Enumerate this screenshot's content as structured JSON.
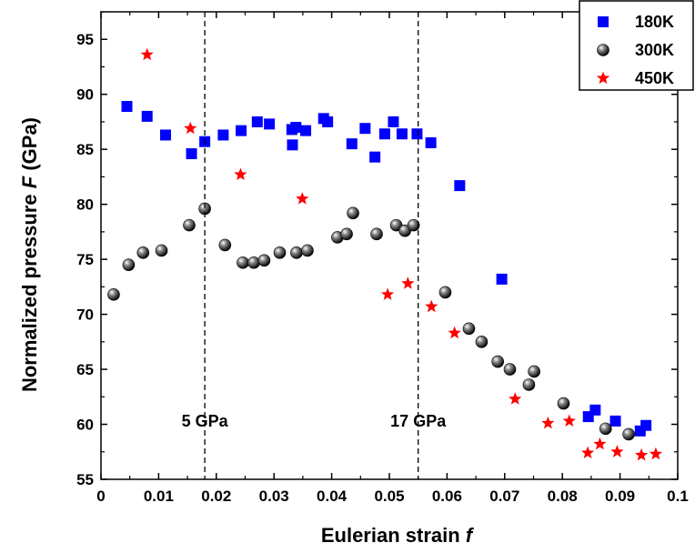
{
  "chart_data": {
    "type": "scatter",
    "xlabel": "Eulerian strain",
    "xlabel_symbol": "f",
    "ylabel": "Normalized pressure",
    "ylabel_symbol": "F",
    "ylabel_unit": "(GPa)",
    "xlim": [
      0,
      0.1
    ],
    "ylim": [
      55,
      97.5
    ],
    "x_ticks": [
      0,
      0.01,
      0.02,
      0.03,
      0.04,
      0.05,
      0.06,
      0.07,
      0.08,
      0.09,
      0.1
    ],
    "x_tick_labels": [
      "0",
      "0.01",
      "0.02",
      "0.03",
      "0.04",
      "0.05",
      "0.06",
      "0.07",
      "0.08",
      "0.09",
      "0.1"
    ],
    "y_ticks": [
      55,
      60,
      65,
      70,
      75,
      80,
      85,
      90,
      95
    ],
    "y_tick_labels": [
      "55",
      "60",
      "65",
      "70",
      "75",
      "80",
      "85",
      "90",
      "95"
    ],
    "grid": false,
    "legend_position": "top-right",
    "vlines": [
      {
        "x": 0.018,
        "label": "5 GPa"
      },
      {
        "x": 0.055,
        "label": "17 GPa"
      }
    ],
    "series": [
      {
        "name": "180K",
        "marker": "square",
        "color": "#0000ff",
        "x": [
          0.0045,
          0.008,
          0.0112,
          0.0157,
          0.018,
          0.0212,
          0.0243,
          0.0271,
          0.0292,
          0.0331,
          0.0338,
          0.0332,
          0.0355,
          0.0386,
          0.0393,
          0.0435,
          0.0458,
          0.0475,
          0.0492,
          0.0507,
          0.0522,
          0.0548,
          0.0572,
          0.0622,
          0.0695,
          0.0845,
          0.0857,
          0.0892,
          0.0935,
          0.0945
        ],
        "y": [
          88.9,
          88.0,
          86.3,
          84.6,
          85.7,
          86.3,
          86.7,
          87.5,
          87.3,
          86.8,
          87.0,
          85.4,
          86.7,
          87.8,
          87.5,
          85.5,
          86.9,
          84.3,
          86.4,
          87.5,
          86.4,
          86.4,
          85.6,
          81.7,
          73.2,
          60.7,
          61.3,
          60.3,
          59.4,
          59.9
        ]
      },
      {
        "name": "300K",
        "marker": "sphere",
        "color": "#000000",
        "x": [
          0.0022,
          0.0048,
          0.0073,
          0.0105,
          0.0153,
          0.018,
          0.0215,
          0.0246,
          0.0265,
          0.0283,
          0.031,
          0.0339,
          0.0358,
          0.041,
          0.0426,
          0.0437,
          0.0478,
          0.0512,
          0.0527,
          0.0542,
          0.0597,
          0.0638,
          0.066,
          0.0688,
          0.0709,
          0.0742,
          0.0751,
          0.0802,
          0.0875,
          0.0915
        ],
        "y": [
          71.8,
          74.5,
          75.6,
          75.8,
          78.1,
          79.6,
          76.3,
          74.7,
          74.7,
          74.9,
          75.6,
          75.6,
          75.8,
          77.0,
          77.3,
          79.2,
          77.3,
          78.1,
          77.6,
          78.1,
          72.0,
          68.7,
          67.5,
          65.7,
          65.0,
          63.6,
          64.8,
          61.9,
          59.6,
          59.1
        ]
      },
      {
        "name": "450K",
        "marker": "star",
        "color": "#ff0000",
        "x": [
          0.008,
          0.0155,
          0.0242,
          0.0349,
          0.0497,
          0.0532,
          0.0573,
          0.0613,
          0.0718,
          0.0775,
          0.0812,
          0.0844,
          0.0865,
          0.0895,
          0.0937,
          0.0962
        ],
        "y": [
          93.6,
          86.9,
          82.7,
          80.5,
          71.8,
          72.8,
          70.7,
          68.3,
          62.3,
          60.1,
          60.3,
          57.4,
          58.2,
          57.5,
          57.2,
          57.3
        ]
      }
    ]
  }
}
